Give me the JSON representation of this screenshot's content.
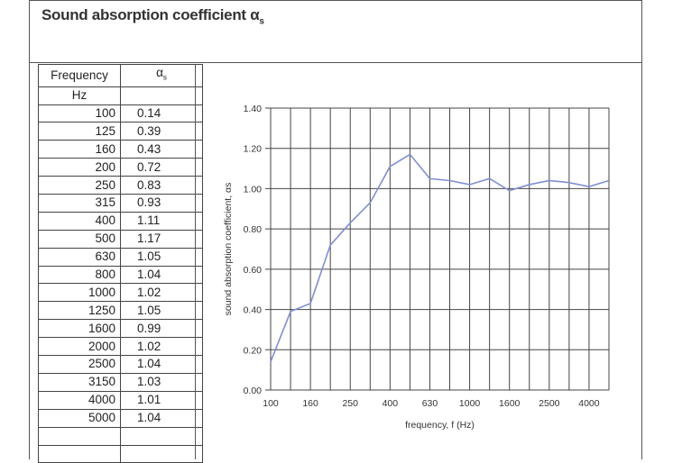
{
  "title": "Sound absorption coefficient α",
  "title_sub": "s",
  "table": {
    "header_freq": "Frequency",
    "header_alpha": "α",
    "header_alpha_sub": "s",
    "unit_freq": "Hz",
    "rows": [
      {
        "f": "100",
        "a": "0.14"
      },
      {
        "f": "125",
        "a": "0.39"
      },
      {
        "f": "160",
        "a": "0.43"
      },
      {
        "f": "200",
        "a": "0.72"
      },
      {
        "f": "250",
        "a": "0.83"
      },
      {
        "f": "315",
        "a": "0.93"
      },
      {
        "f": "400",
        "a": "1.11"
      },
      {
        "f": "500",
        "a": "1.17"
      },
      {
        "f": "630",
        "a": "1.05"
      },
      {
        "f": "800",
        "a": "1.04"
      },
      {
        "f": "1000",
        "a": "1.02"
      },
      {
        "f": "1250",
        "a": "1.05"
      },
      {
        "f": "1600",
        "a": "0.99"
      },
      {
        "f": "2000",
        "a": "1.02"
      },
      {
        "f": "2500",
        "a": "1.04"
      },
      {
        "f": "3150",
        "a": "1.03"
      },
      {
        "f": "4000",
        "a": "1.01"
      },
      {
        "f": "5000",
        "a": "1.04"
      }
    ]
  },
  "chart_data": {
    "type": "line",
    "xlabel": "frequency, f (Hz)",
    "ylabel": "sound absorption coefficient, αs",
    "x": [
      100,
      125,
      160,
      200,
      250,
      315,
      400,
      500,
      630,
      800,
      1000,
      1250,
      1600,
      2000,
      2500,
      3150,
      4000,
      5000
    ],
    "x_tick_labels": [
      "100",
      "160",
      "250",
      "400",
      "630",
      "1000",
      "1600",
      "2500",
      "4000"
    ],
    "x_tick_values": [
      100,
      160,
      250,
      400,
      630,
      1000,
      1600,
      2500,
      4000
    ],
    "y_ticks": [
      "0.00",
      "0.20",
      "0.40",
      "0.60",
      "0.80",
      "1.00",
      "1.20",
      "1.40"
    ],
    "ylim": [
      0,
      1.4
    ],
    "series": [
      {
        "values": [
          0.14,
          0.39,
          0.43,
          0.72,
          0.83,
          0.93,
          1.11,
          1.17,
          1.05,
          1.04,
          1.02,
          1.05,
          0.99,
          1.02,
          1.04,
          1.03,
          1.01,
          1.04
        ]
      }
    ],
    "grid": true,
    "line_color": "#7f8fd0"
  }
}
